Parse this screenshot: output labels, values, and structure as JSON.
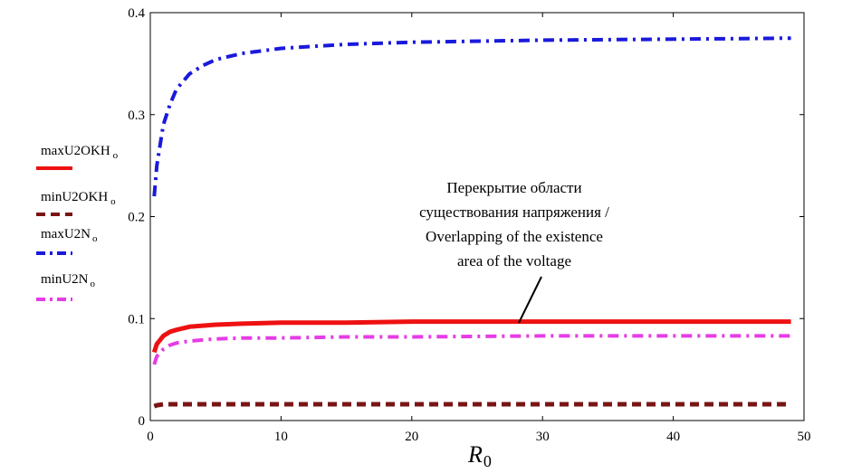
{
  "chart_data": {
    "type": "line",
    "xlabel": "R",
    "xlabel_sub": "0",
    "ylabel": "",
    "xlim": [
      0,
      50
    ],
    "ylim": [
      0,
      0.4
    ],
    "x_ticks": [
      0,
      10,
      20,
      30,
      40,
      50
    ],
    "y_ticks": [
      0,
      0.1,
      0.2,
      0.3,
      0.4
    ],
    "x_tick_labels": [
      "0",
      "10",
      "20",
      "30",
      "40",
      "50"
    ],
    "y_tick_labels": [
      "0",
      "0.1",
      "0.2",
      "0.3",
      "0.4"
    ],
    "grid": false,
    "legend_position": "left",
    "x": [
      0.3,
      0.5,
      1,
      1.5,
      2,
      3,
      4,
      5,
      7,
      10,
      15,
      20,
      30,
      40,
      49
    ],
    "series": [
      {
        "name": "maxU2OKH",
        "subscript": "o",
        "color": "#ee1111",
        "style": "solid",
        "values": [
          0.067,
          0.075,
          0.083,
          0.087,
          0.089,
          0.092,
          0.093,
          0.094,
          0.095,
          0.096,
          0.096,
          0.097,
          0.097,
          0.097,
          0.097
        ]
      },
      {
        "name": "minU2OKH",
        "subscript": "o",
        "color": "#7a1515",
        "style": "dashed",
        "values": [
          0.014,
          0.015,
          0.016,
          0.016,
          0.016,
          0.016,
          0.016,
          0.016,
          0.016,
          0.016,
          0.016,
          0.016,
          0.016,
          0.016,
          0.016
        ]
      },
      {
        "name": "maxU2N",
        "subscript": "o",
        "color": "#1a1adc",
        "style": "dashdot",
        "values": [
          0.22,
          0.25,
          0.29,
          0.31,
          0.325,
          0.34,
          0.348,
          0.354,
          0.36,
          0.365,
          0.369,
          0.371,
          0.373,
          0.374,
          0.375
        ]
      },
      {
        "name": "minU2N",
        "subscript": "o",
        "color": "#e63ce6",
        "style": "dashdot",
        "values": [
          0.055,
          0.063,
          0.07,
          0.074,
          0.076,
          0.078,
          0.079,
          0.08,
          0.081,
          0.081,
          0.082,
          0.082,
          0.083,
          0.083,
          0.083
        ]
      }
    ],
    "annotation": {
      "lines": [
        "Перекрытие области",
        "существования напряжения /",
        "Overlapping of the existence",
        "area of the voltage"
      ],
      "arrow_from": [
        28,
        0.097
      ],
      "target": "maxU2OKH"
    }
  }
}
